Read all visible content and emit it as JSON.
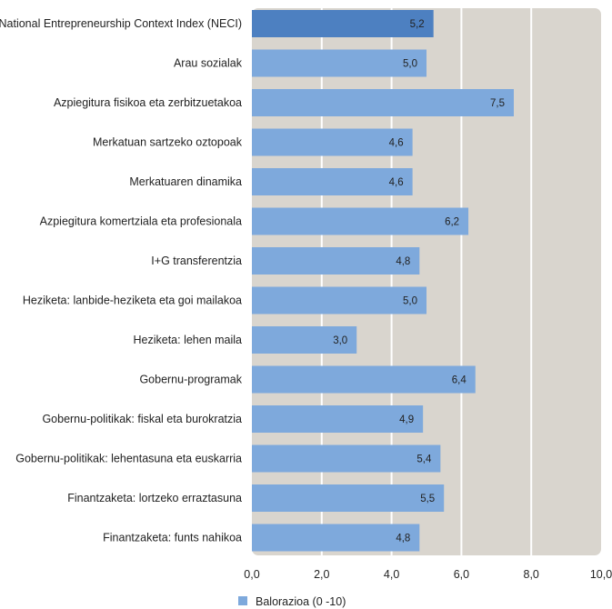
{
  "chart_data": {
    "type": "bar",
    "orientation": "horizontal",
    "categories": [
      "National Entrepreneurship Context Index (NECI)",
      "Arau sozialak",
      "Azpiegitura fisikoa eta zerbitzuetakoa",
      "Merkatuan sartzeko oztopoak",
      "Merkatuaren dinamika",
      "Azpiegitura komertziala eta profesionala",
      "I+G transferentzia",
      "Heziketa: lanbide-heziketa eta goi mailakoa",
      "Heziketa: lehen maila",
      "Gobernu-programak",
      "Gobernu-politikak: fiskal eta burokratzia",
      "Gobernu-politikak: lehentasuna eta euskarria",
      "Finantzaketa: lortzeko erraztasuna",
      "Finantzaketa: funts nahikoa"
    ],
    "series": [
      {
        "name": "Balorazioa (0 -10)",
        "values": [
          5.2,
          5.0,
          7.5,
          4.6,
          4.6,
          6.2,
          4.8,
          5.0,
          3.0,
          6.4,
          4.9,
          5.4,
          5.5,
          4.8
        ],
        "value_labels": [
          "5,2",
          "5,0",
          "7,5",
          "4,6",
          "4,6",
          "6,2",
          "4,8",
          "5,0",
          "3,0",
          "6,4",
          "4,9",
          "5,4",
          "5,5",
          "4,8"
        ]
      }
    ],
    "xlim": [
      0,
      10
    ],
    "xticks": [
      0,
      2,
      4,
      6,
      8,
      10
    ],
    "xtick_labels": [
      "0,0",
      "2,0",
      "4,0",
      "6,0",
      "8,0",
      "10,0"
    ],
    "grid": "vertical",
    "legend": "bottom-left",
    "colors": {
      "bar": "#7ea9dc",
      "bar_highlight": "#4d80c1",
      "plot_background": "#d9d5ce",
      "grid": "#ffffff"
    }
  }
}
